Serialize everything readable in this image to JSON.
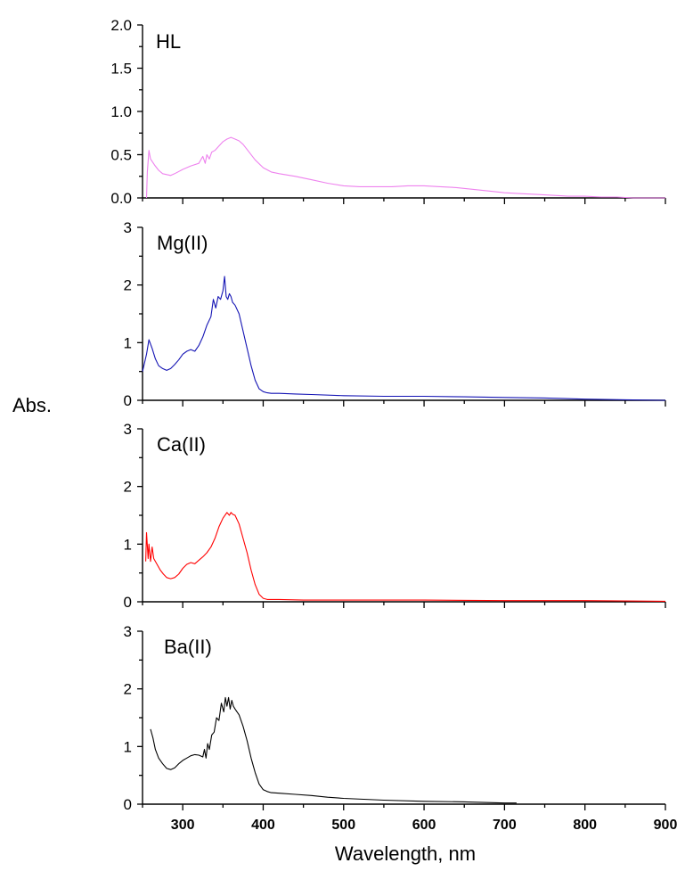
{
  "chart_data": {
    "type": "line",
    "ylabel": "Abs.",
    "xlabel": "Wavelength, nm",
    "xlim": [
      250,
      900
    ],
    "x_ticks": [
      300,
      400,
      500,
      600,
      700,
      800,
      900
    ],
    "grid": false,
    "panels": [
      {
        "label": "HL",
        "color": "#ee82ee",
        "ylim": [
          0,
          2.0
        ],
        "y_ticks": [
          0.0,
          0.5,
          1.0,
          1.5,
          2.0
        ],
        "y_tick_labels": [
          "0.0",
          "0.5",
          "1.0",
          "1.5",
          "2.0"
        ],
        "series": {
          "x": [
            255,
            256,
            258,
            260,
            265,
            270,
            275,
            280,
            285,
            290,
            300,
            310,
            320,
            325,
            328,
            330,
            333,
            336,
            340,
            345,
            350,
            355,
            360,
            365,
            370,
            375,
            380,
            390,
            400,
            410,
            420,
            440,
            460,
            480,
            500,
            520,
            540,
            560,
            580,
            600,
            620,
            640,
            660,
            680,
            700,
            720,
            740,
            760,
            780,
            800,
            820,
            840,
            860,
            880,
            900
          ],
          "y": [
            0.0,
            0.3,
            0.55,
            0.45,
            0.38,
            0.32,
            0.28,
            0.27,
            0.26,
            0.28,
            0.33,
            0.37,
            0.4,
            0.48,
            0.4,
            0.5,
            0.45,
            0.53,
            0.55,
            0.6,
            0.65,
            0.68,
            0.7,
            0.68,
            0.66,
            0.62,
            0.56,
            0.44,
            0.35,
            0.3,
            0.28,
            0.25,
            0.21,
            0.17,
            0.14,
            0.13,
            0.13,
            0.13,
            0.14,
            0.14,
            0.13,
            0.12,
            0.1,
            0.08,
            0.06,
            0.05,
            0.04,
            0.03,
            0.02,
            0.02,
            0.01,
            0.01,
            0.0,
            0.0,
            0.0
          ]
        }
      },
      {
        "label": "Mg(II)",
        "color": "#1414b4",
        "ylim": [
          0,
          3
        ],
        "y_ticks": [
          0,
          1,
          2,
          3
        ],
        "y_tick_labels": [
          "0",
          "1",
          "2",
          "3"
        ],
        "series": {
          "x": [
            250,
            255,
            258,
            262,
            266,
            270,
            275,
            280,
            285,
            290,
            295,
            300,
            305,
            310,
            315,
            320,
            325,
            330,
            335,
            338,
            341,
            344,
            347,
            350,
            352,
            354,
            356,
            358,
            360,
            362,
            365,
            370,
            375,
            380,
            385,
            390,
            395,
            400,
            405,
            410,
            420,
            440,
            460,
            500,
            550,
            600,
            650,
            700,
            750,
            800,
            850,
            900
          ],
          "y": [
            0.5,
            0.8,
            1.05,
            0.9,
            0.72,
            0.6,
            0.55,
            0.52,
            0.55,
            0.62,
            0.7,
            0.8,
            0.85,
            0.88,
            0.85,
            0.95,
            1.1,
            1.3,
            1.45,
            1.75,
            1.6,
            1.8,
            1.75,
            1.9,
            2.15,
            1.8,
            1.75,
            1.85,
            1.8,
            1.7,
            1.65,
            1.5,
            1.2,
            0.9,
            0.6,
            0.35,
            0.2,
            0.15,
            0.13,
            0.12,
            0.12,
            0.11,
            0.1,
            0.08,
            0.07,
            0.07,
            0.06,
            0.05,
            0.04,
            0.02,
            0.01,
            0.0
          ]
        }
      },
      {
        "label": "Ca(II)",
        "color": "#ff0000",
        "ylim": [
          0,
          3
        ],
        "y_ticks": [
          0,
          1,
          2,
          3
        ],
        "y_tick_labels": [
          "0",
          "1",
          "2",
          "3"
        ],
        "series": {
          "x": [
            254,
            255,
            257,
            258,
            260,
            262,
            264,
            268,
            272,
            276,
            280,
            285,
            290,
            295,
            300,
            305,
            310,
            315,
            320,
            325,
            330,
            335,
            340,
            345,
            350,
            355,
            358,
            360,
            362,
            365,
            370,
            375,
            380,
            385,
            390,
            395,
            400,
            405,
            410,
            420,
            450,
            500,
            600,
            700,
            800,
            900
          ],
          "y": [
            0.7,
            1.2,
            0.75,
            1.0,
            0.7,
            0.95,
            0.75,
            0.65,
            0.55,
            0.48,
            0.42,
            0.4,
            0.42,
            0.48,
            0.58,
            0.65,
            0.68,
            0.66,
            0.72,
            0.78,
            0.85,
            0.95,
            1.1,
            1.3,
            1.45,
            1.55,
            1.5,
            1.55,
            1.52,
            1.5,
            1.35,
            1.1,
            0.85,
            0.55,
            0.3,
            0.13,
            0.06,
            0.04,
            0.04,
            0.04,
            0.03,
            0.03,
            0.03,
            0.02,
            0.02,
            0.01
          ]
        }
      },
      {
        "label": "Ba(II)",
        "color": "#000000",
        "ylim": [
          0,
          3
        ],
        "y_ticks": [
          0,
          1,
          2,
          3
        ],
        "y_tick_labels": [
          "0",
          "1",
          "2",
          "3"
        ],
        "series": {
          "x": [
            260,
            263,
            266,
            270,
            275,
            280,
            285,
            290,
            295,
            300,
            305,
            310,
            315,
            320,
            325,
            327,
            329,
            331,
            333,
            336,
            339,
            342,
            345,
            348,
            351,
            353,
            355,
            357,
            359,
            361,
            363,
            365,
            370,
            375,
            380,
            385,
            390,
            395,
            400,
            405,
            410,
            420,
            440,
            460,
            480,
            500,
            550,
            600,
            650,
            700,
            715
          ],
          "y": [
            1.3,
            1.15,
            0.95,
            0.8,
            0.7,
            0.62,
            0.6,
            0.63,
            0.7,
            0.76,
            0.8,
            0.84,
            0.86,
            0.85,
            0.82,
            0.95,
            0.8,
            1.05,
            0.95,
            1.2,
            1.25,
            1.5,
            1.45,
            1.75,
            1.6,
            1.85,
            1.7,
            1.85,
            1.65,
            1.8,
            1.7,
            1.65,
            1.55,
            1.35,
            1.1,
            0.8,
            0.55,
            0.35,
            0.25,
            0.22,
            0.2,
            0.19,
            0.17,
            0.15,
            0.12,
            0.1,
            0.07,
            0.05,
            0.04,
            0.02,
            0.02
          ]
        }
      }
    ]
  }
}
